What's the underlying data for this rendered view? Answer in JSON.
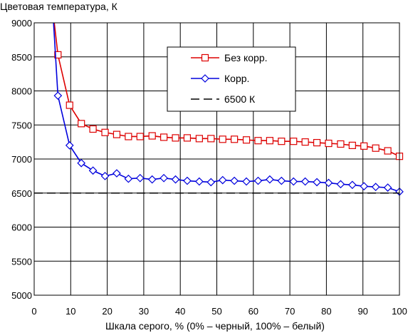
{
  "chart_data": {
    "type": "line",
    "title": "Цветовая температура, К",
    "xlabel": "Шкала серого, % (0% – черный, 100% – белый)",
    "ylabel": "",
    "xlim": [
      0,
      100
    ],
    "ylim": [
      5000,
      9000
    ],
    "xticks": [
      "0",
      "10",
      "20",
      "30",
      "40",
      "50",
      "60",
      "70",
      "80",
      "90",
      "100"
    ],
    "yticks": [
      "5000",
      "5500",
      "6000",
      "6500",
      "7000",
      "7500",
      "8000",
      "8500",
      "9000"
    ],
    "grid": true,
    "legend_position": "top-right",
    "series": [
      {
        "name": "Без корр.",
        "color": "#dd0000",
        "marker": "square",
        "x": [
          5.5,
          6.5,
          9.7,
          12.9,
          16.1,
          19.4,
          22.6,
          25.8,
          29.0,
          32.3,
          35.5,
          38.7,
          41.9,
          45.2,
          48.4,
          51.6,
          54.8,
          58.1,
          61.3,
          64.5,
          67.7,
          71.0,
          74.2,
          77.4,
          80.6,
          83.9,
          87.1,
          90.3,
          93.5,
          96.8,
          100
        ],
        "values": [
          9000,
          8530,
          7790,
          7520,
          7440,
          7390,
          7360,
          7330,
          7330,
          7340,
          7320,
          7310,
          7310,
          7300,
          7300,
          7290,
          7290,
          7280,
          7270,
          7270,
          7260,
          7260,
          7250,
          7240,
          7230,
          7220,
          7200,
          7190,
          7160,
          7120,
          7040
        ]
      },
      {
        "name": "Корр.",
        "color": "#0000dd",
        "marker": "diamond",
        "x": [
          5.3,
          6.5,
          9.7,
          12.9,
          16.1,
          19.4,
          22.6,
          25.8,
          29.0,
          32.3,
          35.5,
          38.7,
          41.9,
          45.2,
          48.4,
          51.6,
          54.8,
          58.1,
          61.3,
          64.5,
          67.7,
          71.0,
          74.2,
          77.4,
          80.6,
          83.9,
          87.1,
          90.3,
          93.5,
          96.8,
          100
        ],
        "values": [
          9000,
          7930,
          7200,
          6940,
          6830,
          6750,
          6790,
          6710,
          6720,
          6700,
          6720,
          6700,
          6680,
          6670,
          6660,
          6690,
          6680,
          6670,
          6680,
          6700,
          6680,
          6670,
          6670,
          6660,
          6650,
          6630,
          6620,
          6600,
          6590,
          6580,
          6520
        ]
      },
      {
        "name": "6500 К",
        "color": "#000000",
        "marker": "none",
        "dashed": true,
        "x": [
          0,
          100
        ],
        "values": [
          6500,
          6500
        ]
      }
    ]
  }
}
